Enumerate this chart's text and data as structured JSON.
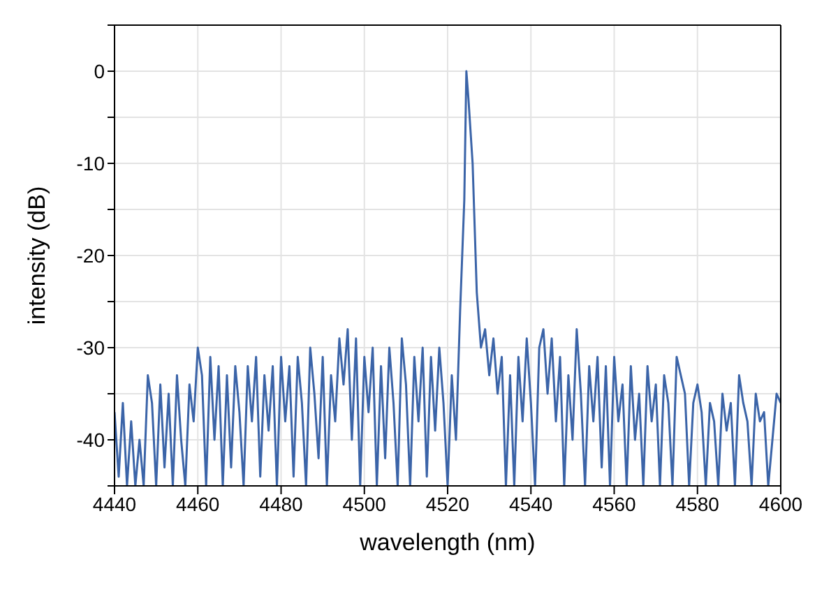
{
  "chart_data": {
    "type": "line",
    "xlabel": "wavelength (nm)",
    "ylabel": "intensity (dB)",
    "x": [
      4440,
      4441,
      4442,
      4443,
      4444,
      4445,
      4446,
      4447,
      4448,
      4449,
      4450,
      4451,
      4452,
      4453,
      4454,
      4455,
      4456,
      4457,
      4458,
      4459,
      4460,
      4461,
      4462,
      4463,
      4464,
      4465,
      4466,
      4467,
      4468,
      4469,
      4470,
      4471,
      4472,
      4473,
      4474,
      4475,
      4476,
      4477,
      4478,
      4479,
      4480,
      4481,
      4482,
      4483,
      4484,
      4485,
      4486,
      4487,
      4488,
      4489,
      4490,
      4491,
      4492,
      4493,
      4494,
      4495,
      4496,
      4497,
      4498,
      4499,
      4500,
      4501,
      4502,
      4503,
      4504,
      4505,
      4506,
      4507,
      4508,
      4509,
      4510,
      4511,
      4512,
      4513,
      4514,
      4515,
      4516,
      4517,
      4518,
      4519,
      4520,
      4521,
      4522,
      4523,
      4524,
      4524.5,
      4525,
      4526,
      4527,
      4528,
      4529,
      4530,
      4531,
      4532,
      4533,
      4534,
      4535,
      4536,
      4537,
      4538,
      4539,
      4540,
      4541,
      4542,
      4543,
      4544,
      4545,
      4546,
      4547,
      4548,
      4549,
      4550,
      4551,
      4552,
      4553,
      4554,
      4555,
      4556,
      4557,
      4558,
      4559,
      4560,
      4561,
      4562,
      4563,
      4564,
      4565,
      4566,
      4567,
      4568,
      4569,
      4570,
      4571,
      4572,
      4573,
      4574,
      4575,
      4576,
      4577,
      4578,
      4579,
      4580,
      4581,
      4582,
      4583,
      4584,
      4585,
      4586,
      4587,
      4588,
      4589,
      4590,
      4591,
      4592,
      4593,
      4594,
      4595,
      4596,
      4597,
      4598,
      4599,
      4600
    ],
    "series": [
      {
        "color": "#3b64a8",
        "values": [
          -37,
          -44,
          -36,
          -45,
          -38,
          -45,
          -40,
          -45,
          -33,
          -36,
          -45,
          -34,
          -43,
          -35,
          -45,
          -33,
          -40,
          -45,
          -34,
          -38,
          -30,
          -33,
          -45,
          -31,
          -40,
          -32,
          -45,
          -33,
          -43,
          -32,
          -37,
          -45,
          -32,
          -38,
          -31,
          -44,
          -33,
          -39,
          -32,
          -45,
          -31,
          -38,
          -32,
          -44,
          -31,
          -36,
          -45,
          -30,
          -35,
          -42,
          -31,
          -45,
          -33,
          -38,
          -29,
          -34,
          -28,
          -40,
          -29,
          -45,
          -31,
          -37,
          -30,
          -45,
          -32,
          -42,
          -30,
          -36,
          -45,
          -29,
          -34,
          -45,
          -31,
          -38,
          -30,
          -44,
          -31,
          -39,
          -30,
          -36,
          -45,
          -33,
          -40,
          -26,
          -14,
          0,
          -3,
          -10,
          -24,
          -30,
          -28,
          -33,
          -29,
          -35,
          -31,
          -45,
          -33,
          -45,
          -31,
          -38,
          -29,
          -36,
          -45,
          -30,
          -28,
          -35,
          -29,
          -38,
          -31,
          -45,
          -33,
          -40,
          -28,
          -35,
          -45,
          -32,
          -38,
          -31,
          -43,
          -32,
          -45,
          -31,
          -38,
          -34,
          -45,
          -32,
          -40,
          -35,
          -45,
          -32,
          -38,
          -34,
          -45,
          -33,
          -36,
          -45,
          -31,
          -33,
          -35,
          -45,
          -36,
          -34,
          -37,
          -45,
          -36,
          -38,
          -45,
          -35,
          -39,
          -36,
          -45,
          -33,
          -36,
          -38,
          -45,
          -35,
          -38,
          -37,
          -45,
          -40,
          -35,
          -36
        ]
      }
    ],
    "xlim": [
      4440,
      4600
    ],
    "xticks": [
      4440,
      4460,
      4480,
      4500,
      4520,
      4540,
      4560,
      4580,
      4600
    ],
    "ylim": [
      -45,
      5
    ],
    "yticks": [
      {
        "value": -45,
        "label": null
      },
      -40,
      {
        "value": -35,
        "label": null
      },
      -30,
      {
        "value": -25,
        "label": null
      },
      -20,
      {
        "value": -15,
        "label": null
      },
      -10,
      {
        "value": -5,
        "label": null
      },
      0,
      {
        "value": 5,
        "label": null
      }
    ],
    "grid": true,
    "marker": "none",
    "line_style": "solid"
  }
}
